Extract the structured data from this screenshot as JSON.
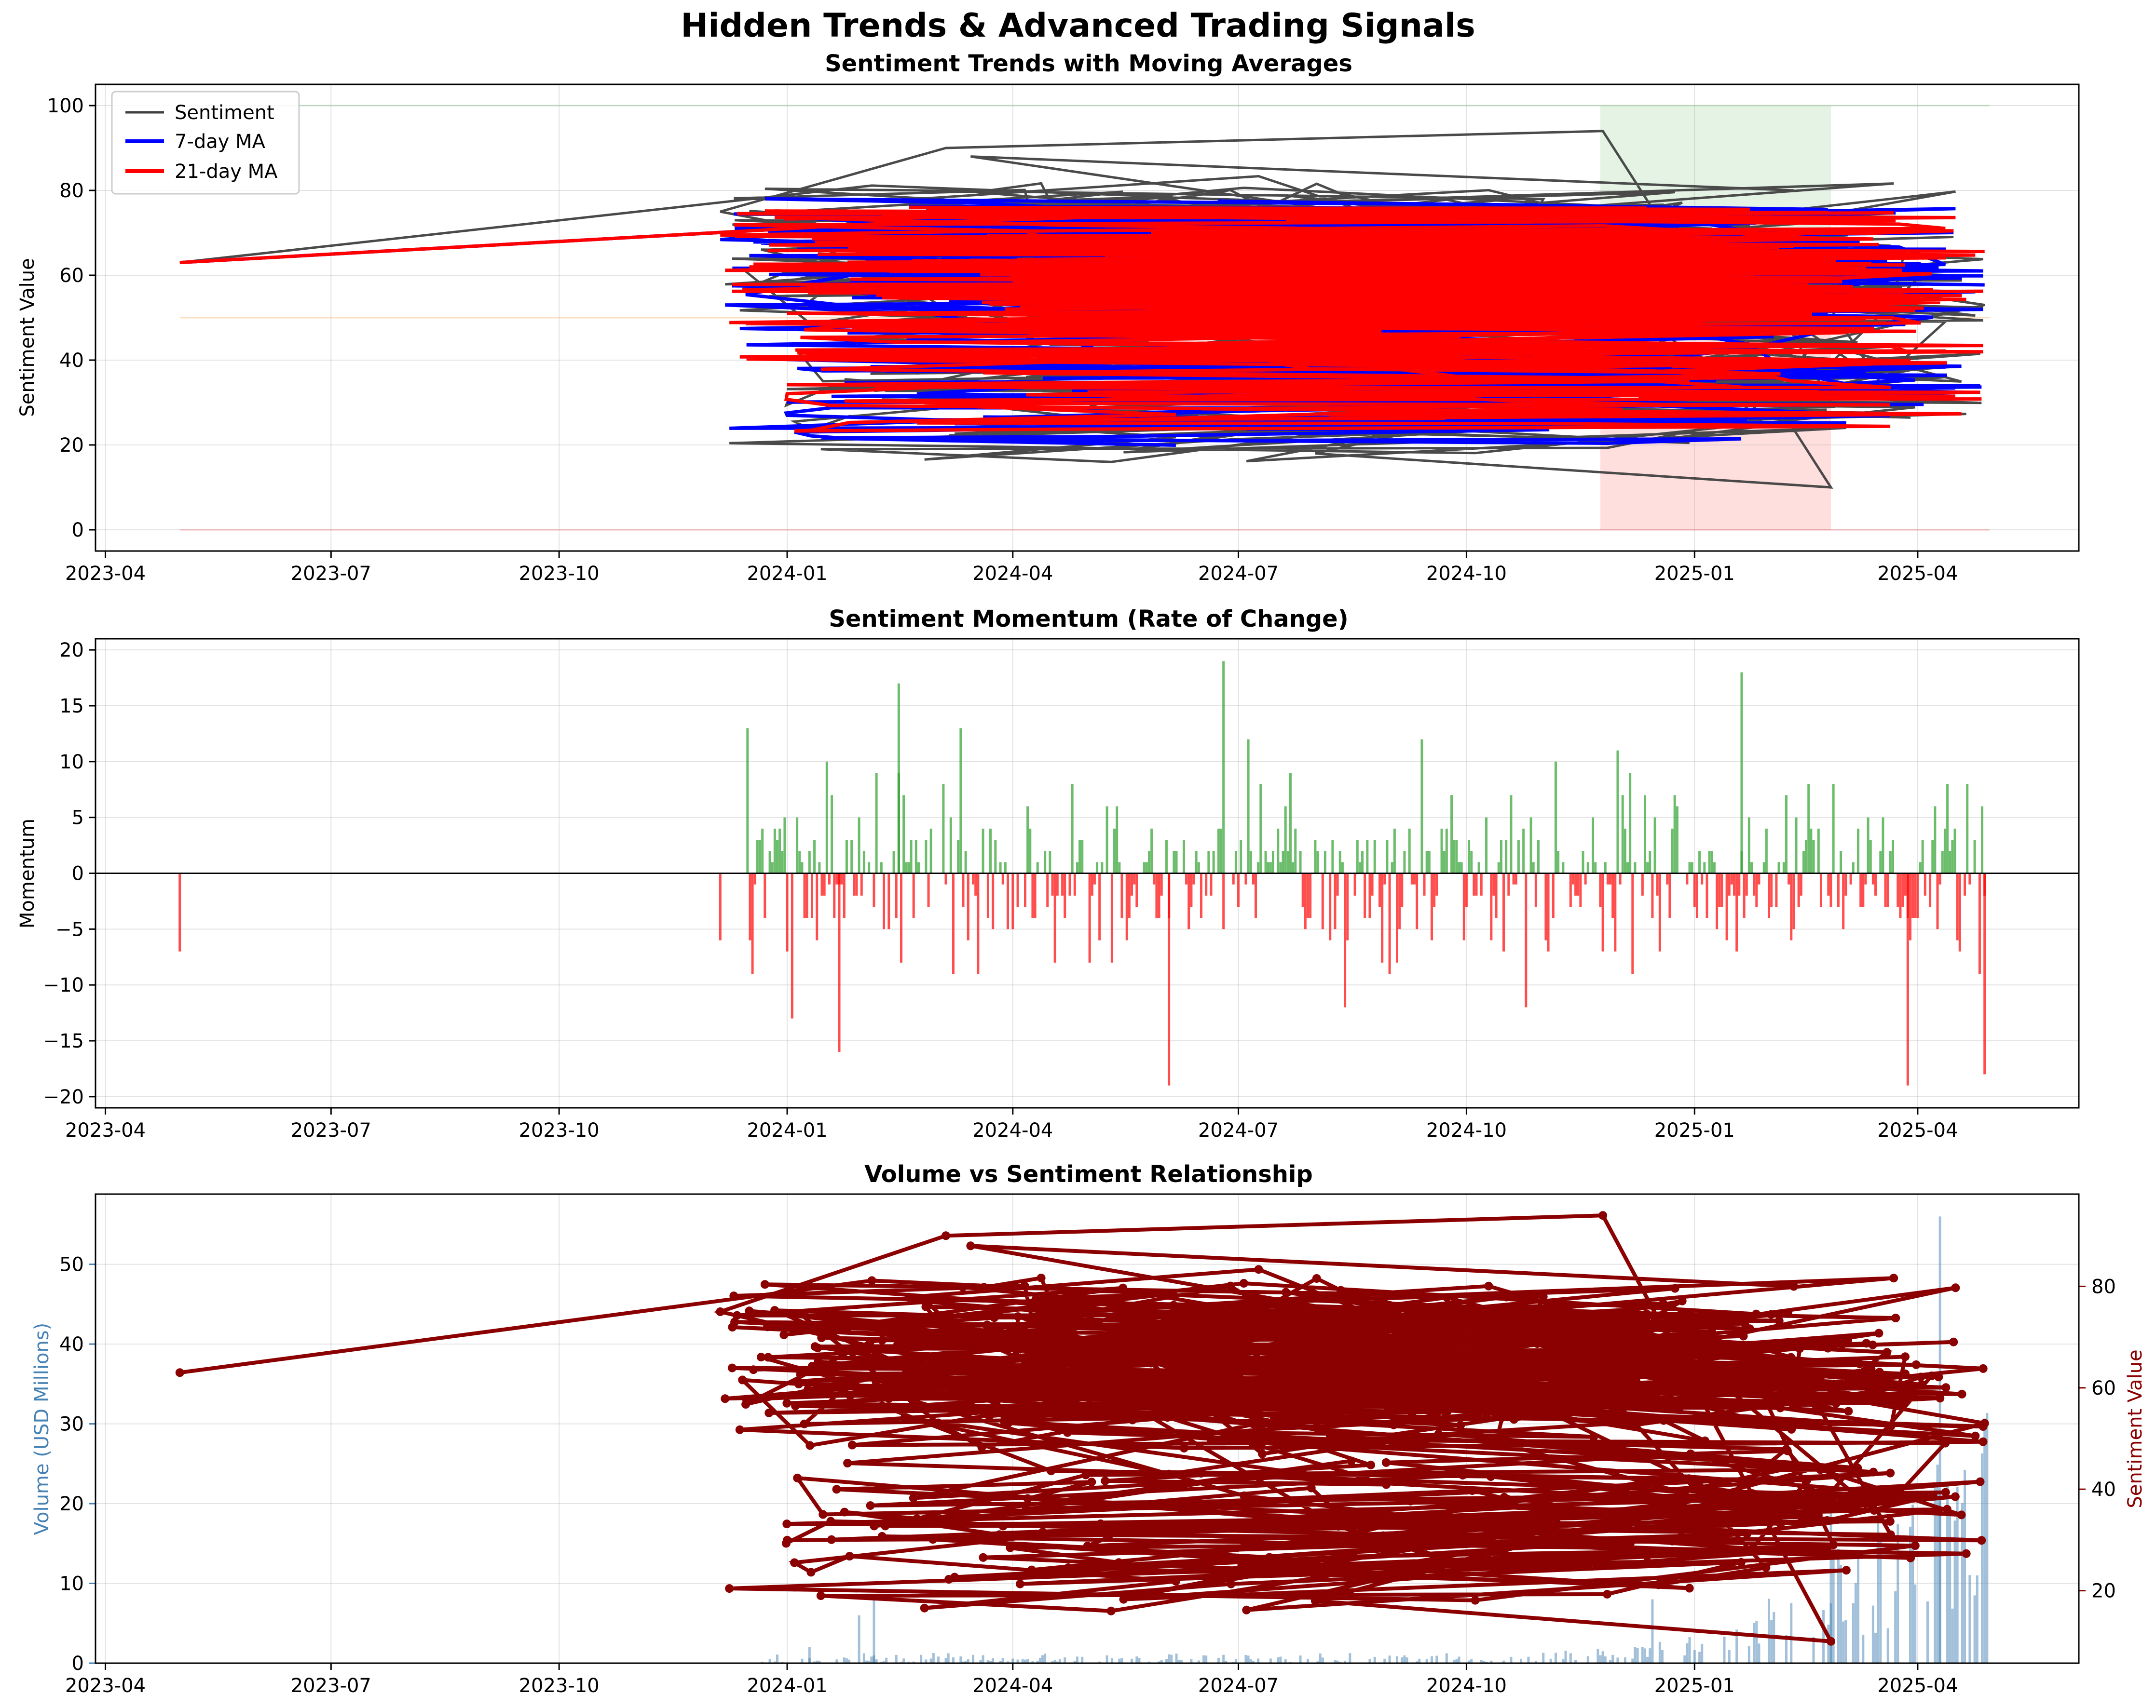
{
  "figure": {
    "suptitle": "Hidden Trends & Advanced Trading Signals"
  },
  "chart_data": [
    {
      "type": "line",
      "title": "Sentiment Trends with Moving Averages",
      "xlabel": "",
      "ylabel": "Sentiment Value",
      "x_axis": {
        "type": "date",
        "range": [
          "2023-03-28",
          "2025-06-05"
        ],
        "ticks": [
          "2023-04",
          "2023-07",
          "2023-10",
          "2024-01",
          "2024-04",
          "2024-07",
          "2024-10",
          "2025-01",
          "2025-04"
        ]
      },
      "ylim": [
        -5,
        105
      ],
      "yticks": [
        "0",
        "20",
        "40",
        "60",
        "80",
        "100"
      ],
      "grid": true,
      "legend": "top-left",
      "series": [
        {
          "name": "Sentiment",
          "color": "#404040"
        },
        {
          "name": "7-day MA",
          "color": "#0000ff"
        },
        {
          "name": "21-day MA",
          "color": "#ff0000"
        }
      ],
      "sample_points": [
        [
          "2023-05-01",
          63
        ],
        [
          "2023-12-05",
          75
        ],
        [
          "2024-03-05",
          90
        ],
        [
          "2024-11-25",
          94
        ],
        [
          "2025-02-25",
          10
        ],
        [
          "2024-08-01",
          18
        ],
        [
          "2025-04-25",
          54
        ],
        [
          "2023-05-01",
          65
        ],
        [
          "2023-05-01",
          56
        ]
      ],
      "reference_lines": [
        {
          "y": 100,
          "color": "#2ca02c"
        },
        {
          "y": 50,
          "color": "#ff7f0e"
        },
        {
          "y": 0,
          "color": "#ff0000"
        }
      ],
      "shaded_regions": [
        {
          "x_start": "2024-11-24",
          "x_end": "2025-02-25",
          "y_from": 50,
          "y_to": 100,
          "color": "#2ca02c"
        },
        {
          "x_start": "2024-11-24",
          "x_end": "2025-02-25",
          "y_from": 0,
          "y_to": 50,
          "color": "#ff0000"
        }
      ]
    },
    {
      "type": "bar",
      "title": "Sentiment Momentum (Rate of Change)",
      "xlabel": "",
      "ylabel": "Momentum",
      "x_axis": {
        "type": "date",
        "range": [
          "2023-03-28",
          "2025-06-05"
        ],
        "ticks": [
          "2023-04",
          "2023-07",
          "2023-10",
          "2024-01",
          "2024-04",
          "2024-07",
          "2024-10",
          "2025-01",
          "2025-04"
        ]
      },
      "ylim": [
        -21,
        21
      ],
      "yticks": [
        "−20",
        "−15",
        "−10",
        "−5",
        "0",
        "5",
        "10",
        "15",
        "20"
      ],
      "grid": true,
      "positive_color": "#2ca02c",
      "negative_color": "#ff0000",
      "sample_bars": [
        [
          "2023-05-01",
          -7
        ],
        [
          "2023-12-05",
          -6
        ],
        [
          "2024-02-15",
          17
        ],
        [
          "2024-01-22",
          -16
        ],
        [
          "2024-06-25",
          19
        ],
        [
          "2024-06-03",
          -19
        ],
        [
          "2025-01-20",
          18
        ],
        [
          "2025-03-28",
          -19
        ],
        [
          "2025-04-28",
          -18
        ]
      ]
    },
    {
      "type": "line",
      "title": "Volume vs Sentiment Relationship",
      "xlabel": "",
      "ylabel": "Volume (USD Millions)",
      "y2label": "Sentiment Value",
      "x_axis": {
        "type": "date",
        "range": [
          "2023-03-28",
          "2025-06-05"
        ],
        "ticks": [
          "2023-04",
          "2023-07",
          "2023-10",
          "2024-01",
          "2024-04",
          "2024-07",
          "2024-10",
          "2025-01",
          "2025-04"
        ]
      },
      "ylim": [
        0,
        58.8
      ],
      "yticks": [
        "0",
        "10",
        "20",
        "30",
        "40",
        "50"
      ],
      "y2lim": [
        5.7,
        98.2
      ],
      "y2ticks": [
        "20",
        "40",
        "60",
        "80"
      ],
      "grid": true,
      "volume_color": "#4682b4",
      "sentiment_color": "#8b0000",
      "sample_volume": [
        [
          "2024-01-10",
          2
        ],
        [
          "2024-01-30",
          6
        ],
        [
          "2024-02-05",
          8
        ],
        [
          "2024-12-15",
          8
        ],
        [
          "2025-02-25",
          19
        ],
        [
          "2025-04-10",
          56
        ],
        [
          "2025-04-25",
          11
        ]
      ],
      "sample_sentiment": [
        [
          "2023-05-01",
          63
        ],
        [
          "2023-12-05",
          75
        ],
        [
          "2024-03-05",
          90
        ],
        [
          "2024-11-25",
          94
        ],
        [
          "2025-02-25",
          10
        ],
        [
          "2024-08-01",
          18
        ],
        [
          "2025-04-28",
          53
        ]
      ]
    }
  ]
}
